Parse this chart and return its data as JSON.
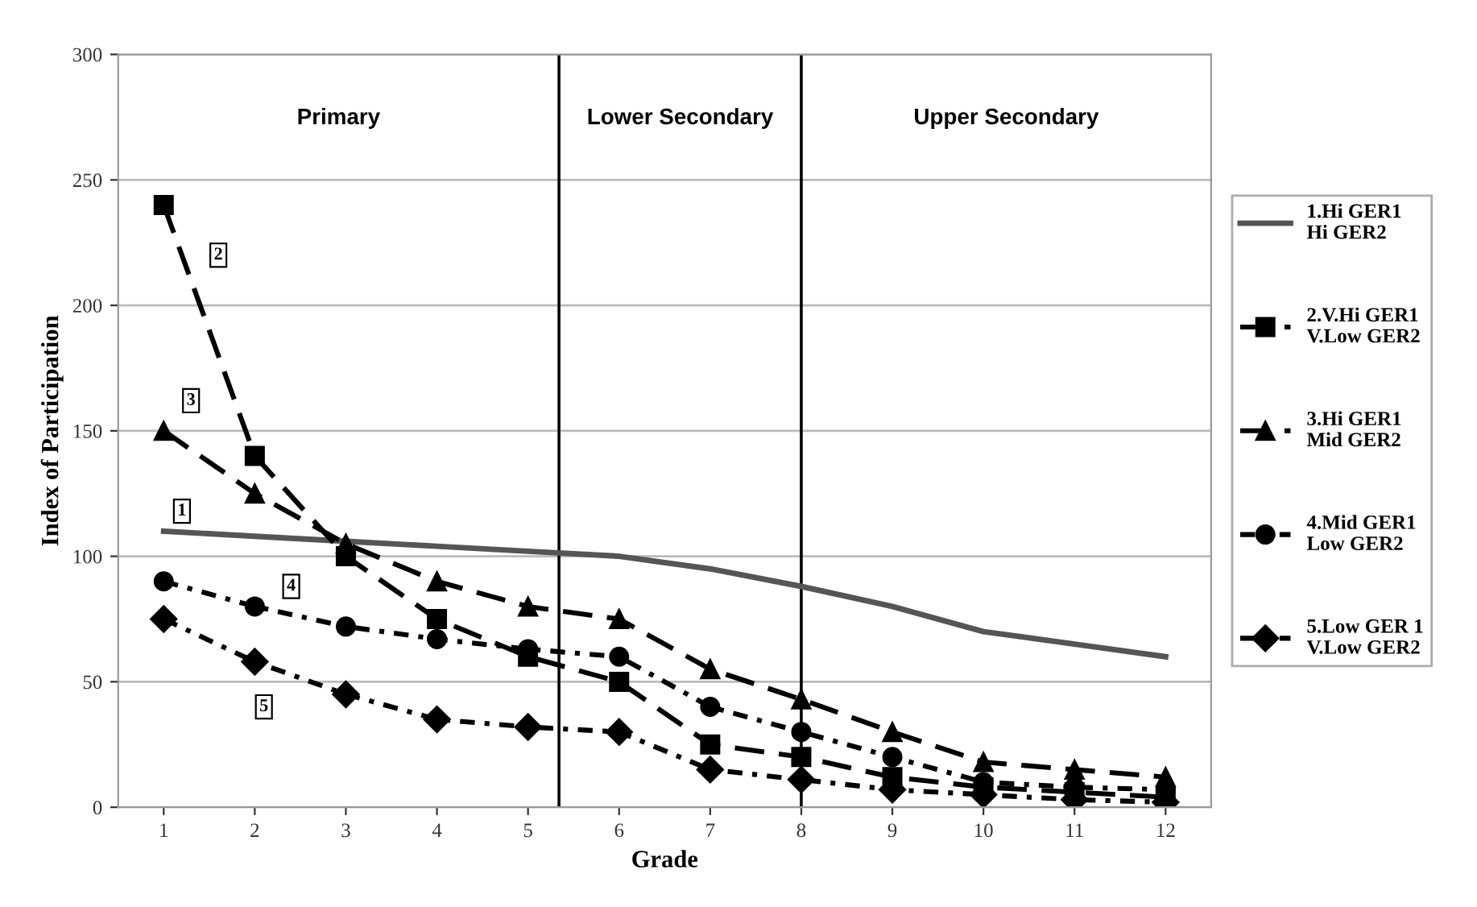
{
  "chart_data": {
    "type": "line",
    "xlabel": "Grade",
    "ylabel": "Index of Participation",
    "x": [
      1,
      2,
      3,
      4,
      5,
      6,
      7,
      8,
      9,
      10,
      11,
      12
    ],
    "xlim": [
      0.5,
      12.5
    ],
    "xticks": [
      1,
      2,
      3,
      4,
      5,
      6,
      7,
      8,
      9,
      10,
      11,
      12
    ],
    "ylim": [
      0,
      300
    ],
    "yticks": [
      0,
      50,
      100,
      150,
      200,
      250,
      300
    ],
    "grid": "y",
    "legend": "right",
    "series": [
      {
        "name": "1.Hi GER1\nHi GER2",
        "color": "#555555",
        "line_style": "solid",
        "marker": "none",
        "values": [
          110,
          108,
          106,
          104,
          102,
          100,
          95,
          88,
          80,
          70,
          65,
          60
        ]
      },
      {
        "name": "2.V.Hi GER1\nV.Low GER2",
        "color": "#000000",
        "line_style": "dashed",
        "marker": "square",
        "values": [
          240,
          140,
          100,
          75,
          60,
          50,
          25,
          20,
          12,
          8,
          6,
          4
        ]
      },
      {
        "name": "3.Hi GER1\nMid GER2",
        "color": "#000000",
        "line_style": "dashed",
        "marker": "triangle",
        "values": [
          150,
          125,
          105,
          90,
          80,
          75,
          55,
          43,
          30,
          18,
          15,
          12
        ]
      },
      {
        "name": "4.Mid GER1\nLow GER2",
        "color": "#000000",
        "line_style": "dotted",
        "marker": "circle",
        "values": [
          90,
          80,
          72,
          67,
          63,
          60,
          40,
          30,
          20,
          10,
          8,
          7
        ]
      },
      {
        "name": "5.Low GER 1\nV.Low GER2",
        "color": "#000000",
        "line_style": "dotted",
        "marker": "diamond",
        "values": [
          75,
          58,
          45,
          35,
          32,
          30,
          15,
          11,
          7,
          5,
          3,
          2
        ]
      }
    ],
    "ref_lines": [
      {
        "axis": "x",
        "value": 5.34,
        "label": null,
        "color": "#000000"
      },
      {
        "axis": "x",
        "value": 8,
        "label": null,
        "color": "#000000"
      }
    ],
    "annotations": [
      "Primary",
      "Lower Secondary",
      "Upper Secondary",
      {
        "text": "1",
        "x": 1.2,
        "y": 118
      },
      {
        "text": "2",
        "x": 1.6,
        "y": 220
      },
      {
        "text": "3",
        "x": 1.3,
        "y": 162
      },
      {
        "text": "4",
        "x": 2.4,
        "y": 88
      },
      {
        "text": "5",
        "x": 2.1,
        "y": 40
      }
    ]
  }
}
